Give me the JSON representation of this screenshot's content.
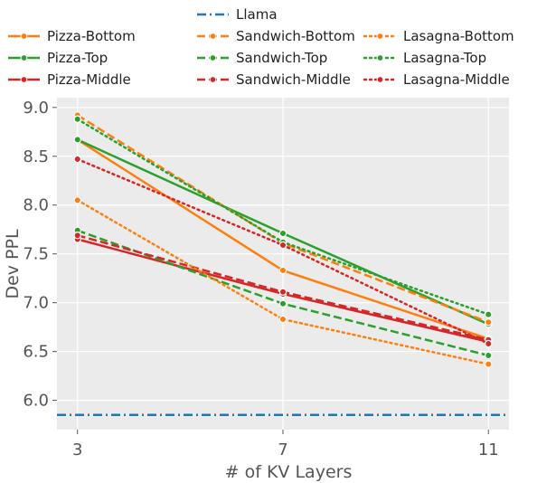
{
  "chart_data": {
    "type": "line",
    "title": "",
    "xlabel": "# of KV Layers",
    "ylabel": "Dev PPL",
    "x": [
      3,
      7,
      11
    ],
    "x_ticks": [
      "3",
      "7",
      "11"
    ],
    "xlim": [
      2.6,
      11.4
    ],
    "ylim": [
      5.7,
      9.1
    ],
    "y_ticks": [
      "6.0",
      "6.5",
      "7.0",
      "7.5",
      "8.0",
      "8.5",
      "9.0"
    ],
    "grid": true,
    "legend_position": "top",
    "colors": {
      "blue": "#1f77b4",
      "orange": "#ff7f0e",
      "green": "#2ca02c",
      "red": "#d62728",
      "plot_background": "#ebebeb"
    },
    "baseline": {
      "name": "Llama",
      "value": 5.85,
      "color": "#1f77b4",
      "style": "dashdot"
    },
    "series": [
      {
        "name": "Pizza-Bottom",
        "color": "#ff7f0e",
        "style": "solid",
        "values": [
          8.67,
          7.33,
          6.63
        ]
      },
      {
        "name": "Pizza-Top",
        "color": "#2ca02c",
        "style": "solid",
        "values": [
          8.67,
          7.71,
          6.78
        ]
      },
      {
        "name": "Pizza-Middle",
        "color": "#d62728",
        "style": "solid",
        "values": [
          7.65,
          7.09,
          6.6
        ]
      },
      {
        "name": "Sandwich-Bottom",
        "color": "#ff7f0e",
        "style": "dashed",
        "values": [
          8.92,
          7.61,
          6.8
        ]
      },
      {
        "name": "Sandwich-Top",
        "color": "#2ca02c",
        "style": "dashed",
        "values": [
          7.74,
          6.99,
          6.46
        ]
      },
      {
        "name": "Sandwich-Middle",
        "color": "#d62728",
        "style": "dashed",
        "values": [
          7.69,
          7.11,
          6.62
        ]
      },
      {
        "name": "Lasagna-Bottom",
        "color": "#ff7f0e",
        "style": "dotted",
        "values": [
          8.05,
          6.83,
          6.37
        ]
      },
      {
        "name": "Lasagna-Top",
        "color": "#2ca02c",
        "style": "dotted",
        "values": [
          8.88,
          7.62,
          6.88
        ]
      },
      {
        "name": "Lasagna-Middle",
        "color": "#d62728",
        "style": "dotted",
        "values": [
          8.47,
          7.59,
          6.58
        ]
      }
    ]
  }
}
